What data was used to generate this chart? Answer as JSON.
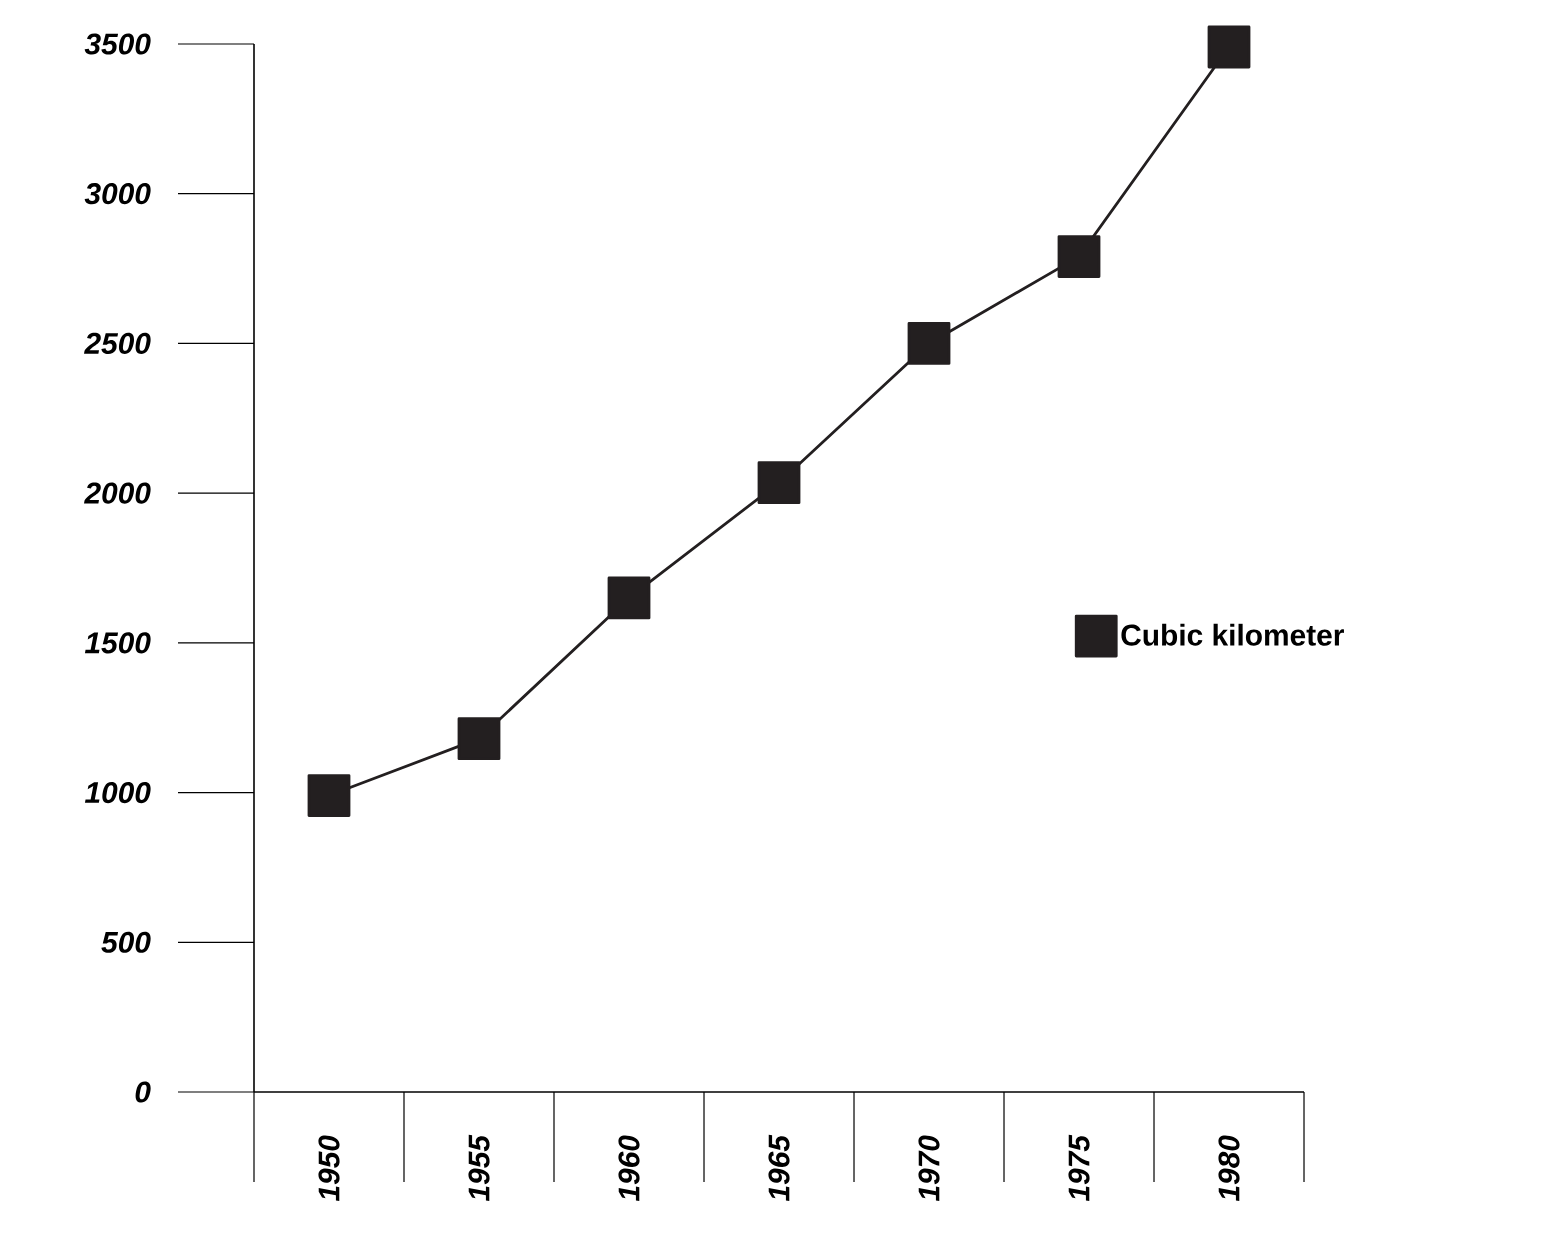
{
  "chart_data": {
    "type": "line",
    "categories": [
      "1950",
      "1955",
      "1960",
      "1965",
      "1970",
      "1975",
      "1980"
    ],
    "series": [
      {
        "name": "Cubic kilometer",
        "color": "#231f20",
        "values": [
          990,
          1180,
          1650,
          2035,
          2500,
          2790,
          3490
        ]
      }
    ],
    "ylim": [
      0,
      3500
    ],
    "yticks": [
      0,
      500,
      1000,
      1500,
      2000,
      2500,
      3000,
      3500
    ],
    "legend": "right",
    "marker": "square",
    "line_style": "solid"
  }
}
